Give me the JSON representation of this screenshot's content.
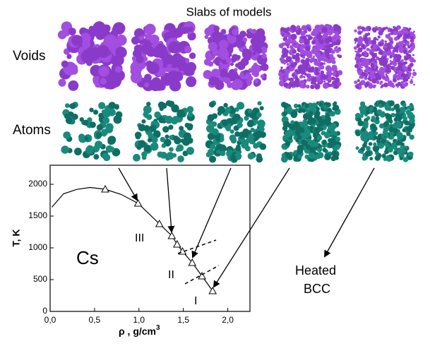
{
  "header": {
    "title": "Slabs of models"
  },
  "rows": [
    "Voids",
    "Atoms"
  ],
  "chart_data": {
    "type": "line",
    "xlabel": {
      "text": "ρ , g/cm",
      "superscript": "3"
    },
    "ylabel": "T, K",
    "xlim": [
      0,
      2.25
    ],
    "ylim": [
      0,
      2300
    ],
    "xticks": [
      {
        "value": 0,
        "label": "0,0"
      },
      {
        "value": 0.5,
        "label": "0,5"
      },
      {
        "value": 1,
        "label": "1,0"
      },
      {
        "value": 1.5,
        "label": "1,5"
      },
      {
        "value": 2,
        "label": "2,0"
      }
    ],
    "yticks": [
      0,
      500,
      1000,
      1500,
      2000
    ],
    "series": [
      {
        "color": "#000000",
        "marker": "none",
        "x": [
          0.02,
          0.15,
          0.3,
          0.45,
          0.62,
          0.8,
          0.99,
          1.23,
          1.37,
          1.43,
          1.49,
          1.6,
          1.71,
          1.83
        ],
        "values": [
          1640,
          1850,
          1920,
          1950,
          1922,
          1840,
          1700,
          1378,
          1189,
          1056,
          944,
          767,
          556,
          322
        ]
      },
      {
        "color": "#000000",
        "marker": "triangle",
        "x": [
          0.62,
          0.99,
          1.23,
          1.37,
          1.43,
          1.49,
          1.6,
          1.71,
          1.83
        ],
        "values": [
          1922,
          1700,
          1378,
          1189,
          1056,
          944,
          767,
          556,
          322
        ]
      }
    ],
    "annotations": [
      "Cs",
      "III",
      "II",
      "I",
      "Heated",
      "BCC"
    ]
  }
}
